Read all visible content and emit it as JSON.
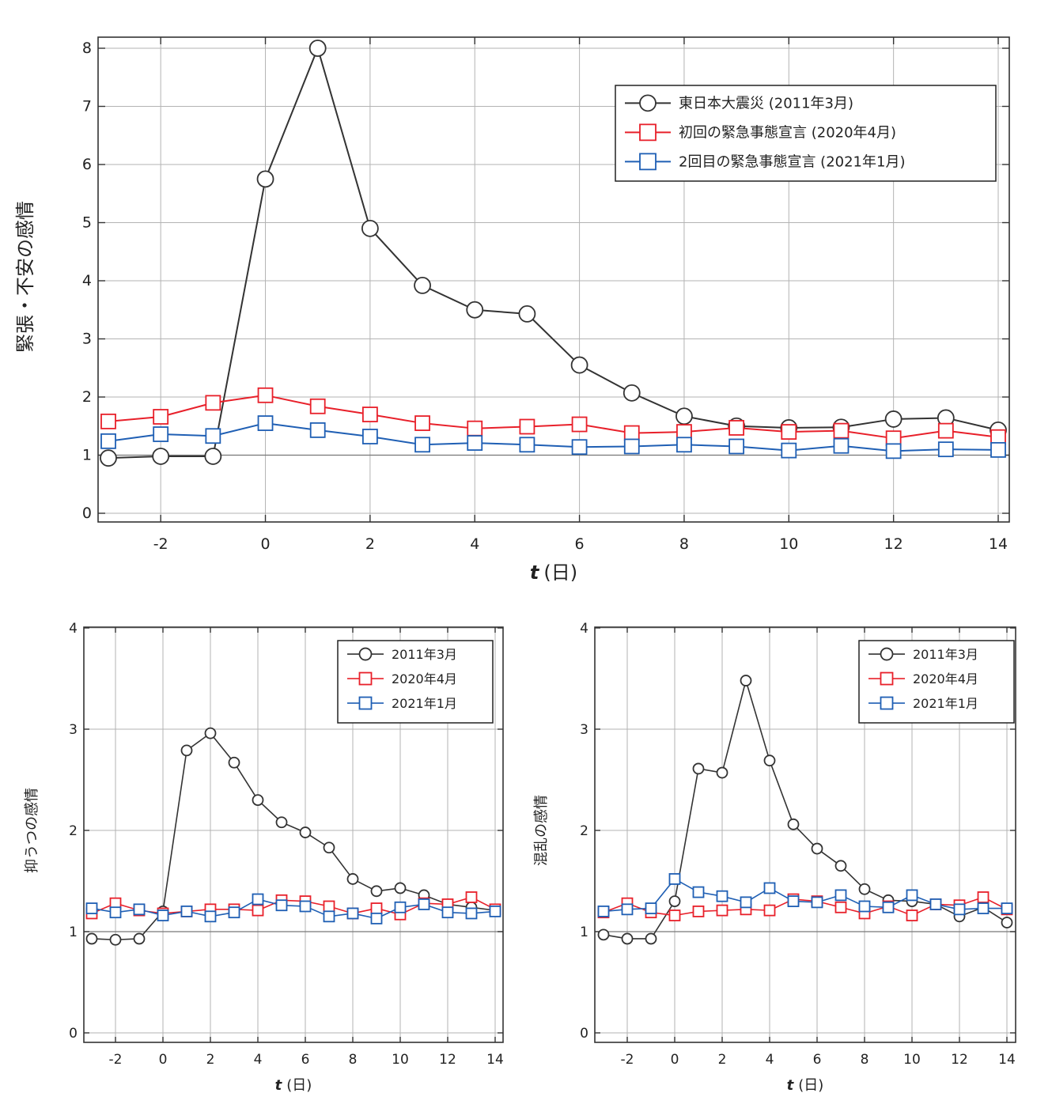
{
  "chart_data": [
    {
      "type": "line",
      "xlabel_var": "t",
      "xlabel_unit": "(日)",
      "ylabel": "緊張・不安の感情",
      "xlim": [
        -3,
        14
      ],
      "ylim": [
        0,
        8
      ],
      "xticks": [
        "-2",
        "0",
        "2",
        "4",
        "6",
        "8",
        "10",
        "12",
        "14"
      ],
      "xtick_values": [
        -2,
        0,
        2,
        4,
        6,
        8,
        10,
        12,
        14
      ],
      "yticks": [
        "0",
        "1",
        "2",
        "3",
        "4",
        "5",
        "6",
        "7",
        "8"
      ],
      "ytick_values": [
        0,
        1,
        2,
        3,
        4,
        5,
        6,
        7,
        8
      ],
      "grid": true,
      "legend_position": "top-right",
      "x": [
        -3,
        -2,
        -1,
        0,
        1,
        2,
        3,
        4,
        5,
        6,
        7,
        8,
        9,
        10,
        11,
        12,
        13,
        14
      ],
      "series": [
        {
          "name": "東日本大震災 (2011年3月)",
          "color": "#333333",
          "marker": "circle",
          "values": [
            0.95,
            0.98,
            0.98,
            5.75,
            8.0,
            4.9,
            3.92,
            3.5,
            3.43,
            2.55,
            2.07,
            1.67,
            1.5,
            1.47,
            1.48,
            1.62,
            1.64,
            1.43
          ]
        },
        {
          "name": "初回の緊急事態宣言 (2020年4月)",
          "color": "#e8202a",
          "marker": "square",
          "values": [
            1.58,
            1.66,
            1.9,
            2.03,
            1.84,
            1.7,
            1.55,
            1.46,
            1.49,
            1.53,
            1.38,
            1.4,
            1.47,
            1.4,
            1.42,
            1.29,
            1.42,
            1.31
          ]
        },
        {
          "name": "2回目の緊急事態宣言 (2021年1月)",
          "color": "#1f5fb4",
          "marker": "square",
          "values": [
            1.24,
            1.36,
            1.33,
            1.55,
            1.43,
            1.32,
            1.18,
            1.21,
            1.18,
            1.14,
            1.15,
            1.18,
            1.15,
            1.08,
            1.16,
            1.07,
            1.1,
            1.09
          ]
        }
      ]
    },
    {
      "type": "line",
      "xlabel_var": "t",
      "xlabel_unit": "(日)",
      "ylabel": "抑うつの感情",
      "xlim": [
        -3,
        14
      ],
      "ylim": [
        0,
        4
      ],
      "xticks": [
        "-2",
        "0",
        "2",
        "4",
        "6",
        "8",
        "10",
        "12",
        "14"
      ],
      "xtick_values": [
        -2,
        0,
        2,
        4,
        6,
        8,
        10,
        12,
        14
      ],
      "yticks": [
        "0",
        "1",
        "2",
        "3",
        "4"
      ],
      "ytick_values": [
        0,
        1,
        2,
        3,
        4
      ],
      "grid": true,
      "legend_position": "top-right",
      "x": [
        -3,
        -2,
        -1,
        0,
        1,
        2,
        3,
        4,
        5,
        6,
        7,
        8,
        9,
        10,
        11,
        12,
        13,
        14
      ],
      "series": [
        {
          "name": "2011年3月",
          "color": "#333333",
          "marker": "circle",
          "values": [
            0.93,
            0.92,
            0.93,
            1.2,
            2.79,
            2.96,
            2.67,
            2.3,
            2.08,
            1.98,
            1.83,
            1.52,
            1.4,
            1.43,
            1.36,
            1.27,
            1.24,
            1.21
          ]
        },
        {
          "name": "2020年4月",
          "color": "#e8202a",
          "marker": "square",
          "values": [
            1.18,
            1.28,
            1.21,
            1.18,
            1.2,
            1.22,
            1.22,
            1.21,
            1.31,
            1.3,
            1.25,
            1.18,
            1.23,
            1.17,
            1.28,
            1.27,
            1.34,
            1.22
          ]
        },
        {
          "name": "2021年1月",
          "color": "#1f5fb4",
          "marker": "square",
          "values": [
            1.23,
            1.19,
            1.22,
            1.16,
            1.2,
            1.15,
            1.19,
            1.32,
            1.26,
            1.25,
            1.15,
            1.18,
            1.13,
            1.24,
            1.27,
            1.19,
            1.18,
            1.2
          ]
        }
      ]
    },
    {
      "type": "line",
      "xlabel_var": "t",
      "xlabel_unit": "(日)",
      "ylabel": "混乱の感情",
      "xlim": [
        -3,
        14
      ],
      "ylim": [
        0,
        4
      ],
      "xticks": [
        "-2",
        "0",
        "2",
        "4",
        "6",
        "8",
        "10",
        "12",
        "14"
      ],
      "xtick_values": [
        -2,
        0,
        2,
        4,
        6,
        8,
        10,
        12,
        14
      ],
      "yticks": [
        "0",
        "1",
        "2",
        "3",
        "4"
      ],
      "ytick_values": [
        0,
        1,
        2,
        3,
        4
      ],
      "grid": true,
      "legend_position": "top-right",
      "x": [
        -3,
        -2,
        -1,
        0,
        1,
        2,
        3,
        4,
        5,
        6,
        7,
        8,
        9,
        10,
        11,
        12,
        13,
        14
      ],
      "series": [
        {
          "name": "2011年3月",
          "color": "#333333",
          "marker": "circle",
          "values": [
            0.97,
            0.93,
            0.93,
            1.3,
            2.61,
            2.57,
            3.48,
            2.69,
            2.06,
            1.82,
            1.65,
            1.42,
            1.31,
            1.3,
            1.27,
            1.15,
            1.24,
            1.09
          ]
        },
        {
          "name": "2020年4月",
          "color": "#e8202a",
          "marker": "square",
          "values": [
            1.19,
            1.28,
            1.19,
            1.16,
            1.2,
            1.21,
            1.22,
            1.21,
            1.32,
            1.3,
            1.24,
            1.18,
            1.25,
            1.16,
            1.27,
            1.26,
            1.34,
            1.22
          ]
        },
        {
          "name": "2021年1月",
          "color": "#1f5fb4",
          "marker": "square",
          "values": [
            1.2,
            1.22,
            1.23,
            1.52,
            1.39,
            1.35,
            1.29,
            1.43,
            1.3,
            1.29,
            1.36,
            1.25,
            1.24,
            1.36,
            1.27,
            1.22,
            1.23,
            1.23
          ]
        }
      ]
    }
  ]
}
